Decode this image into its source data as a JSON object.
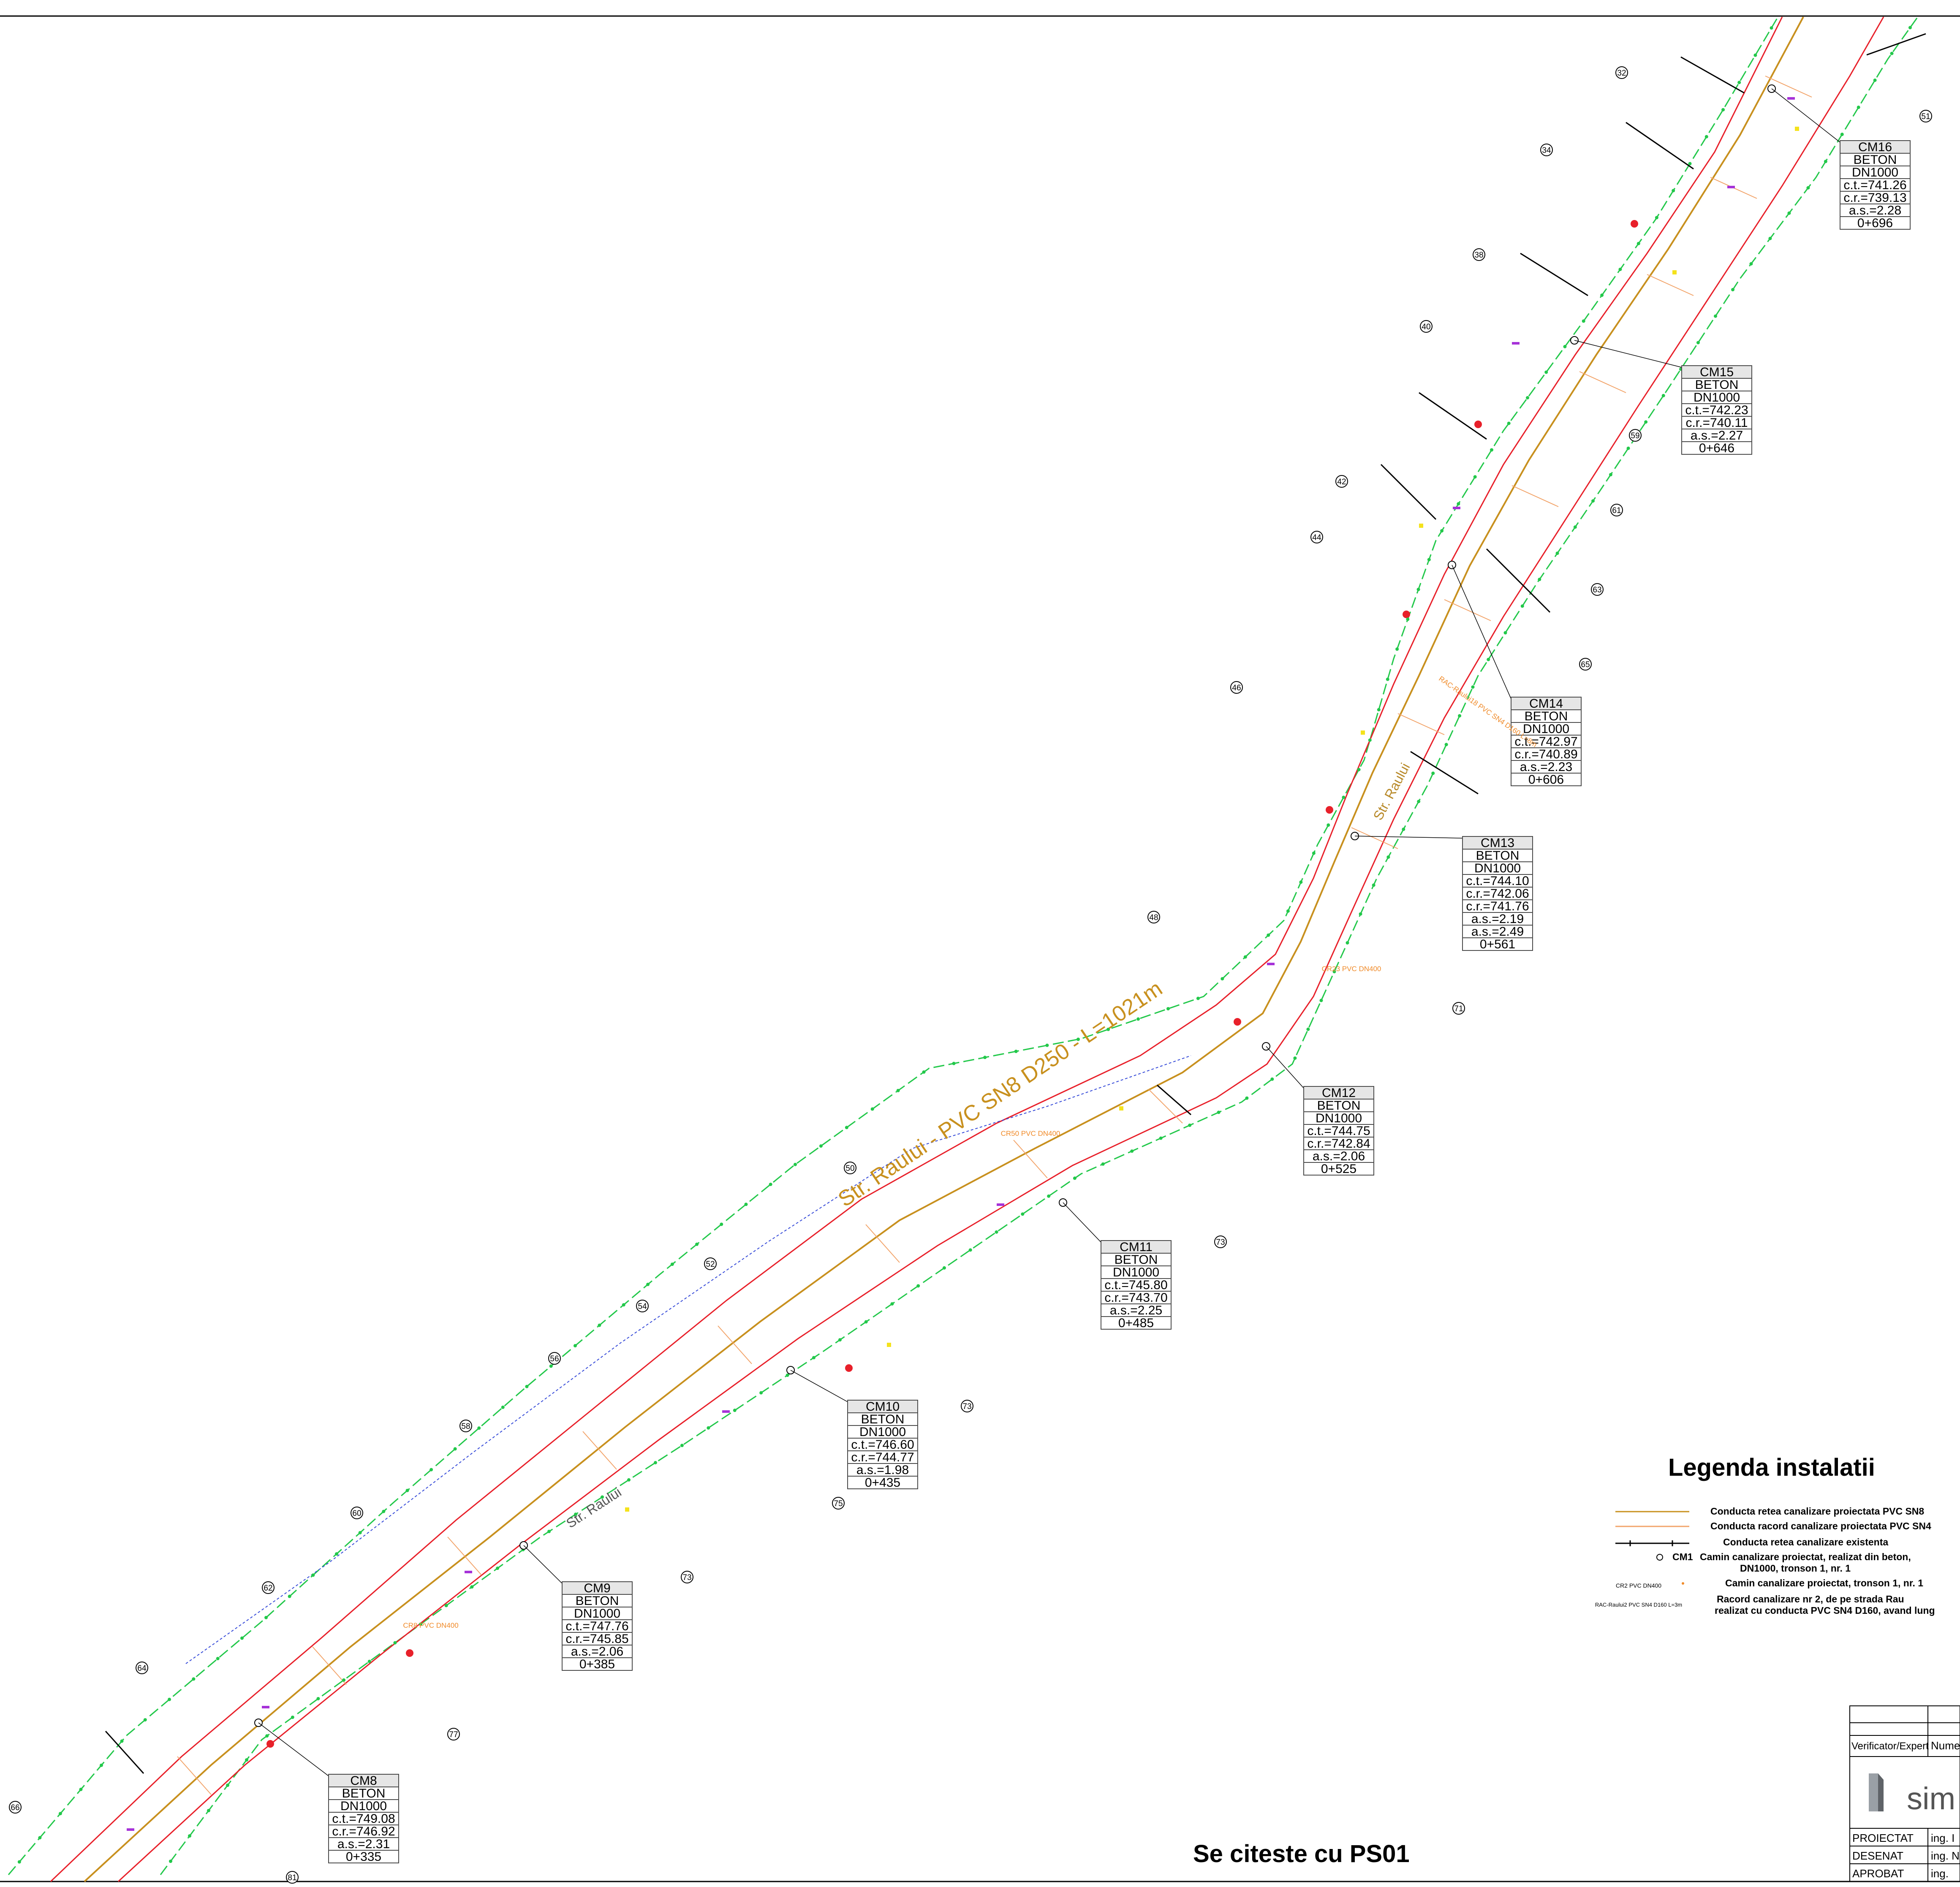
{
  "drawing": {
    "street_label_main": "Str. Raului - PVC SN8 D250 - L=1021m",
    "street_label_a": "Str. Raului",
    "street_label_b": "Str. Raului",
    "footer_note": "Se citeste cu PS01"
  },
  "colors": {
    "pipe_proposed": "#c8901e",
    "pipe_connection": "#f2a46a",
    "road_edge": "#e8202a",
    "green_network": "#22c84a",
    "existing": "#000000",
    "blue_dashed": "#3348d8",
    "annotation": "#f08a28"
  },
  "manholes": [
    {
      "id": "CM16",
      "mat": "BETON",
      "dn": "DN1000",
      "vals": [
        "c.t.=741.26",
        "c.r.=739.13",
        "a.s.=2.28"
      ],
      "km": "0+696"
    },
    {
      "id": "CM15",
      "mat": "BETON",
      "dn": "DN1000",
      "vals": [
        "c.t.=742.23",
        "c.r.=740.11",
        "a.s.=2.27"
      ],
      "km": "0+646"
    },
    {
      "id": "CM14",
      "mat": "BETON",
      "dn": "DN1000",
      "vals": [
        "c.t.=742.97",
        "c.r.=740.89",
        "a.s.=2.23"
      ],
      "km": "0+606"
    },
    {
      "id": "CM13",
      "mat": "BETON",
      "dn": "DN1000",
      "vals": [
        "c.t.=744.10",
        "c.r.=742.06",
        "c.r.=741.76",
        "a.s.=2.19",
        "a.s.=2.49"
      ],
      "km": "0+561"
    },
    {
      "id": "CM12",
      "mat": "BETON",
      "dn": "DN1000",
      "vals": [
        "c.t.=744.75",
        "c.r.=742.84",
        "a.s.=2.06"
      ],
      "km": "0+525"
    },
    {
      "id": "CM11",
      "mat": "BETON",
      "dn": "DN1000",
      "vals": [
        "c.t.=745.80",
        "c.r.=743.70",
        "a.s.=2.25"
      ],
      "km": "0+485"
    },
    {
      "id": "CM10",
      "mat": "BETON",
      "dn": "DN1000",
      "vals": [
        "c.t.=746.60",
        "c.r.=744.77",
        "a.s.=1.98"
      ],
      "km": "0+435"
    },
    {
      "id": "CM9",
      "mat": "BETON",
      "dn": "DN1000",
      "vals": [
        "c.t.=747.76",
        "c.r.=745.85",
        "a.s.=2.06"
      ],
      "km": "0+385"
    },
    {
      "id": "CM8",
      "mat": "BETON",
      "dn": "DN1000",
      "vals": [
        "c.t.=749.08",
        "c.r.=746.92",
        "a.s.=2.31"
      ],
      "km": "0+335"
    }
  ],
  "house_numbers": [
    "32",
    "34",
    "38",
    "40",
    "42",
    "44",
    "46",
    "48",
    "50",
    "52",
    "54",
    "56",
    "58",
    "60",
    "62",
    "64",
    "66",
    "81",
    "51",
    "59",
    "61",
    "63",
    "65",
    "71",
    "73",
    "73",
    "73",
    "75",
    "77"
  ],
  "legend": {
    "title": "Legenda instalatii",
    "items": [
      {
        "symbol": "pipe-proposed",
        "text": "Conducta retea canalizare proiectata PVC SN8"
      },
      {
        "symbol": "pipe-connection",
        "text": "Conducta racord canalizare proiectata PVC SN4"
      },
      {
        "symbol": "pipe-existing",
        "text": "Conducta retea canalizare existenta"
      },
      {
        "symbol": "manhole",
        "label": "CM1",
        "text": "Camin canalizare proiectat, realizat din beton,",
        "text2": "DN1000, tronson 1, nr. 1"
      },
      {
        "symbol": "chamber",
        "label": "CR2 PVC DN400",
        "text": "Camin canalizare proiectat, tronson 1, nr. 1"
      },
      {
        "symbol": "connection",
        "label": "RAC-Raului2 PVC SN4 D160 L=3m",
        "text": "Racord canalizare nr 2, de pe strada Rau",
        "text2": "realizat cu conducta PVC SN4 D160, avand lung"
      }
    ]
  },
  "title_block": {
    "verifier_label": "Verificator/Expert",
    "verifier_value": "Nume",
    "company_logo_text": "sim",
    "rows": [
      {
        "role": "PROIECTAT",
        "name": "ing. I"
      },
      {
        "role": "DESENAT",
        "name": "ing. N"
      },
      {
        "role": "APROBAT",
        "name": "ing."
      }
    ]
  },
  "sample_annotations": [
    {
      "name": "CR8 PVC DN400"
    },
    {
      "name": "CR50 PVC DN400"
    },
    {
      "name": "CR23 PVC DN400"
    },
    {
      "name": "RAC-Raului18 PVC SN4 D160 L=8m"
    }
  ]
}
